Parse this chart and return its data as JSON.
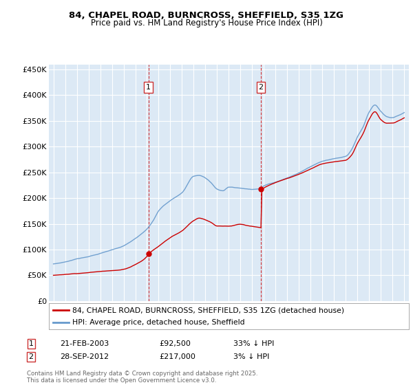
{
  "title1": "84, CHAPEL ROAD, BURNCROSS, SHEFFIELD, S35 1ZG",
  "title2": "Price paid vs. HM Land Registry's House Price Index (HPI)",
  "legend_label_red": "84, CHAPEL ROAD, BURNCROSS, SHEFFIELD, S35 1ZG (detached house)",
  "legend_label_blue": "HPI: Average price, detached house, Sheffield",
  "annotation1_date": "21-FEB-2003",
  "annotation1_price": "£92,500",
  "annotation1_hpi": "33% ↓ HPI",
  "annotation2_date": "28-SEP-2012",
  "annotation2_price": "£217,000",
  "annotation2_hpi": "3% ↓ HPI",
  "footer": "Contains HM Land Registry data © Crown copyright and database right 2025.\nThis data is licensed under the Open Government Licence v3.0.",
  "ylim": [
    0,
    460000
  ],
  "yticks": [
    0,
    50000,
    100000,
    150000,
    200000,
    250000,
    300000,
    350000,
    400000,
    450000
  ],
  "ytick_labels": [
    "£0",
    "£50K",
    "£100K",
    "£150K",
    "£200K",
    "£250K",
    "£300K",
    "£350K",
    "£400K",
    "£450K"
  ],
  "background_color": "#ffffff",
  "plot_bg_color": "#dce9f5",
  "grid_color": "#ffffff",
  "vline1_x": 2003.13,
  "vline2_x": 2012.75,
  "sale1_x": 2003.13,
  "sale1_y": 92500,
  "sale2_x": 2012.75,
  "sale2_y": 217000,
  "red_color": "#cc0000",
  "blue_color": "#6699cc",
  "xlim_left": 1994.6,
  "xlim_right": 2025.4,
  "hpi_years": [
    1995.0,
    1995.08,
    1995.17,
    1995.25,
    1995.33,
    1995.42,
    1995.5,
    1995.58,
    1995.67,
    1995.75,
    1995.83,
    1995.92,
    1996.0,
    1996.08,
    1996.17,
    1996.25,
    1996.33,
    1996.42,
    1996.5,
    1996.58,
    1996.67,
    1996.75,
    1996.83,
    1996.92,
    1997.0,
    1997.08,
    1997.17,
    1997.25,
    1997.33,
    1997.42,
    1997.5,
    1997.58,
    1997.67,
    1997.75,
    1997.83,
    1997.92,
    1998.0,
    1998.08,
    1998.17,
    1998.25,
    1998.33,
    1998.42,
    1998.5,
    1998.58,
    1998.67,
    1998.75,
    1998.83,
    1998.92,
    1999.0,
    1999.08,
    1999.17,
    1999.25,
    1999.33,
    1999.42,
    1999.5,
    1999.58,
    1999.67,
    1999.75,
    1999.83,
    1999.92,
    2000.0,
    2000.08,
    2000.17,
    2000.25,
    2000.33,
    2000.42,
    2000.5,
    2000.58,
    2000.67,
    2000.75,
    2000.83,
    2000.92,
    2001.0,
    2001.08,
    2001.17,
    2001.25,
    2001.33,
    2001.42,
    2001.5,
    2001.58,
    2001.67,
    2001.75,
    2001.83,
    2001.92,
    2002.0,
    2002.08,
    2002.17,
    2002.25,
    2002.33,
    2002.42,
    2002.5,
    2002.58,
    2002.67,
    2002.75,
    2002.83,
    2002.92,
    2003.0,
    2003.08,
    2003.17,
    2003.25,
    2003.33,
    2003.42,
    2003.5,
    2003.58,
    2003.67,
    2003.75,
    2003.83,
    2003.92,
    2004.0,
    2004.08,
    2004.17,
    2004.25,
    2004.33,
    2004.42,
    2004.5,
    2004.58,
    2004.67,
    2004.75,
    2004.83,
    2004.92,
    2005.0,
    2005.08,
    2005.17,
    2005.25,
    2005.33,
    2005.42,
    2005.5,
    2005.58,
    2005.67,
    2005.75,
    2005.83,
    2005.92,
    2006.0,
    2006.08,
    2006.17,
    2006.25,
    2006.33,
    2006.42,
    2006.5,
    2006.58,
    2006.67,
    2006.75,
    2006.83,
    2006.92,
    2007.0,
    2007.08,
    2007.17,
    2007.25,
    2007.33,
    2007.42,
    2007.5,
    2007.58,
    2007.67,
    2007.75,
    2007.83,
    2007.92,
    2008.0,
    2008.08,
    2008.17,
    2008.25,
    2008.33,
    2008.42,
    2008.5,
    2008.58,
    2008.67,
    2008.75,
    2008.83,
    2008.92,
    2009.0,
    2009.08,
    2009.17,
    2009.25,
    2009.33,
    2009.42,
    2009.5,
    2009.58,
    2009.67,
    2009.75,
    2009.83,
    2009.92,
    2010.0,
    2010.08,
    2010.17,
    2010.25,
    2010.33,
    2010.42,
    2010.5,
    2010.58,
    2010.67,
    2010.75,
    2010.83,
    2010.92,
    2011.0,
    2011.08,
    2011.17,
    2011.25,
    2011.33,
    2011.42,
    2011.5,
    2011.58,
    2011.67,
    2011.75,
    2011.83,
    2011.92,
    2012.0,
    2012.08,
    2012.17,
    2012.25,
    2012.33,
    2012.42,
    2012.5,
    2012.58,
    2012.67,
    2012.75,
    2012.83,
    2012.92,
    2013.0,
    2013.08,
    2013.17,
    2013.25,
    2013.33,
    2013.42,
    2013.5,
    2013.58,
    2013.67,
    2013.75,
    2013.83,
    2013.92,
    2014.0,
    2014.08,
    2014.17,
    2014.25,
    2014.33,
    2014.42,
    2014.5,
    2014.58,
    2014.67,
    2014.75,
    2014.83,
    2014.92,
    2015.0,
    2015.08,
    2015.17,
    2015.25,
    2015.33,
    2015.42,
    2015.5,
    2015.58,
    2015.67,
    2015.75,
    2015.83,
    2015.92,
    2016.0,
    2016.08,
    2016.17,
    2016.25,
    2016.33,
    2016.42,
    2016.5,
    2016.58,
    2016.67,
    2016.75,
    2016.83,
    2016.92,
    2017.0,
    2017.08,
    2017.17,
    2017.25,
    2017.33,
    2017.42,
    2017.5,
    2017.58,
    2017.67,
    2017.75,
    2017.83,
    2017.92,
    2018.0,
    2018.08,
    2018.17,
    2018.25,
    2018.33,
    2018.42,
    2018.5,
    2018.58,
    2018.67,
    2018.75,
    2018.83,
    2018.92,
    2019.0,
    2019.08,
    2019.17,
    2019.25,
    2019.33,
    2019.42,
    2019.5,
    2019.58,
    2019.67,
    2019.75,
    2019.83,
    2019.92,
    2020.0,
    2020.08,
    2020.17,
    2020.25,
    2020.33,
    2020.42,
    2020.5,
    2020.58,
    2020.67,
    2020.75,
    2020.83,
    2020.92,
    2021.0,
    2021.08,
    2021.17,
    2021.25,
    2021.33,
    2021.42,
    2021.5,
    2021.58,
    2021.67,
    2021.75,
    2021.83,
    2021.92,
    2022.0,
    2022.08,
    2022.17,
    2022.25,
    2022.33,
    2022.42,
    2022.5,
    2022.58,
    2022.67,
    2022.75,
    2022.83,
    2022.92,
    2023.0,
    2023.08,
    2023.17,
    2023.25,
    2023.33,
    2023.42,
    2023.5,
    2023.58,
    2023.67,
    2023.75,
    2023.83,
    2023.92,
    2024.0,
    2024.08,
    2024.17,
    2024.25,
    2024.33,
    2024.42,
    2024.5,
    2024.58,
    2024.67,
    2024.75,
    2024.83,
    2024.92,
    2025.0
  ]
}
